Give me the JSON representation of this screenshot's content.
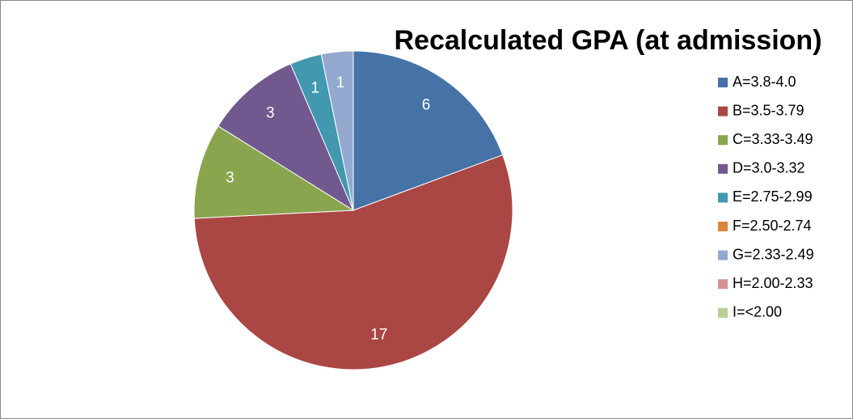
{
  "chart_data": {
    "type": "pie",
    "title": "Recalculated GPA (at admission)",
    "categories": [
      "A=3.8-4.0",
      "B=3.5-3.79",
      "C=3.33-3.49",
      "D=3.0-3.32",
      "E=2.75-2.99",
      "F=2.50-2.74",
      "G=2.33-2.49",
      "H=2.00-2.33",
      "I=<2.00"
    ],
    "values": [
      6,
      17,
      3,
      3,
      1,
      0,
      1,
      0,
      0
    ],
    "colors": [
      "#4572a7",
      "#aa4643",
      "#89a54e",
      "#71588f",
      "#4198af",
      "#db843d",
      "#93a9cf",
      "#d19392",
      "#b9cd96"
    ],
    "legend": "right"
  }
}
